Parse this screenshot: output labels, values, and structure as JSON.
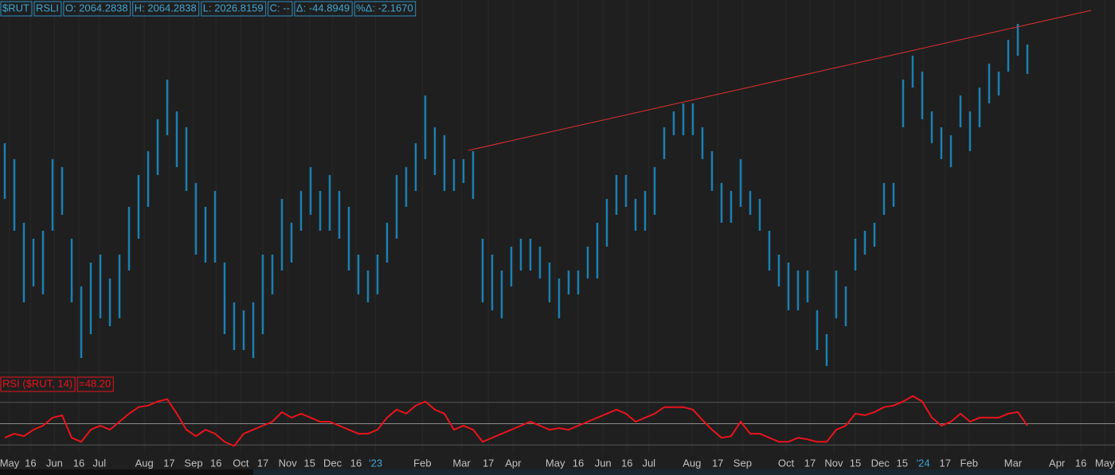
{
  "chart_data": [
    {
      "type": "range-bar",
      "color": "#1b80b0",
      "header": [
        "$RUT",
        "RSLI",
        "O: 2064.2838",
        "H: 2064.2838",
        "L: 2026.8159",
        "C: --",
        "Δ: -44.8949",
        "%Δ: -2.1670"
      ],
      "high": [
        1940,
        1920,
        1840,
        1820,
        1830,
        1920,
        1910,
        1820,
        1760,
        1790,
        1800,
        1770,
        1800,
        1860,
        1900,
        1930,
        1970,
        2020,
        1980,
        1960,
        1890,
        1860,
        1880,
        1790,
        1740,
        1730,
        1740,
        1800,
        1800,
        1870,
        1840,
        1880,
        1910,
        1880,
        1900,
        1880,
        1860,
        1800,
        1780,
        1800,
        1840,
        1900,
        1910,
        1940,
        2000,
        1960,
        1950,
        1920,
        1920,
        1930,
        1820,
        1800,
        1780,
        1810,
        1820,
        1820,
        1810,
        1790,
        1770,
        1780,
        1780,
        1810,
        1840,
        1870,
        1900,
        1900,
        1870,
        1880,
        1910,
        1960,
        1980,
        1990,
        1990,
        1960,
        1930,
        1890,
        1880,
        1920,
        1880,
        1870,
        1830,
        1800,
        1790,
        1780,
        1780,
        1730,
        1700,
        1780,
        1760,
        1820,
        1830,
        1840,
        1890,
        1890,
        2020,
        2050,
        2030,
        1980,
        1960,
        1950,
        2000,
        1980,
        2010,
        2040,
        2030,
        2070,
        2090,
        2064
      ],
      "low": [
        1870,
        1830,
        1740,
        1760,
        1750,
        1830,
        1850,
        1740,
        1670,
        1700,
        1720,
        1710,
        1720,
        1780,
        1820,
        1860,
        1900,
        1950,
        1910,
        1880,
        1800,
        1790,
        1790,
        1700,
        1680,
        1680,
        1670,
        1700,
        1750,
        1780,
        1790,
        1830,
        1850,
        1830,
        1830,
        1820,
        1780,
        1750,
        1740,
        1750,
        1790,
        1820,
        1860,
        1880,
        1920,
        1900,
        1880,
        1880,
        1890,
        1870,
        1740,
        1730,
        1720,
        1760,
        1780,
        1780,
        1770,
        1740,
        1720,
        1750,
        1750,
        1770,
        1770,
        1810,
        1850,
        1860,
        1830,
        1830,
        1850,
        1920,
        1950,
        1950,
        1950,
        1920,
        1880,
        1840,
        1840,
        1860,
        1850,
        1830,
        1780,
        1760,
        1730,
        1730,
        1740,
        1680,
        1660,
        1720,
        1710,
        1780,
        1800,
        1810,
        1850,
        1860,
        1960,
        2010,
        1970,
        1940,
        1920,
        1910,
        1960,
        1930,
        1960,
        1990,
        2000,
        2030,
        2050,
        2027
      ],
      "ylim": [
        1655,
        2120
      ],
      "xlim": [
        -0.5,
        116.17
      ],
      "xticks": [
        {
          "value": 0.5,
          "label": "May"
        },
        {
          "value": 2.7,
          "label": "16"
        },
        {
          "value": 5.2,
          "label": "Jun"
        },
        {
          "value": 7.75,
          "label": "16"
        },
        {
          "value": 9.9,
          "label": "Jul"
        },
        {
          "value": 14.6,
          "label": "Aug"
        },
        {
          "value": 17.2,
          "label": "17"
        },
        {
          "value": 19.75,
          "label": "Sep"
        },
        {
          "value": 22.1,
          "label": "16"
        },
        {
          "value": 24.7,
          "label": "Oct"
        },
        {
          "value": 27,
          "label": "17"
        },
        {
          "value": 29.6,
          "label": "Nov"
        },
        {
          "value": 31.9,
          "label": "15"
        },
        {
          "value": 34.3,
          "label": "Dec"
        },
        {
          "value": 36.75,
          "label": "16"
        },
        {
          "value": 38.8,
          "label": "'23"
        },
        {
          "value": 43.7,
          "label": "Feb"
        },
        {
          "value": 47.8,
          "label": "Mar"
        },
        {
          "value": 50.6,
          "label": "17"
        },
        {
          "value": 53.2,
          "label": "Apr"
        },
        {
          "value": 57.6,
          "label": "May"
        },
        {
          "value": 60,
          "label": "16"
        },
        {
          "value": 62.6,
          "label": "Jun"
        },
        {
          "value": 65.1,
          "label": "16"
        },
        {
          "value": 67.4,
          "label": "Jul"
        },
        {
          "value": 71.9,
          "label": "Aug"
        },
        {
          "value": 74.6,
          "label": "17"
        },
        {
          "value": 77.2,
          "label": "Sep"
        },
        {
          "value": 81.75,
          "label": "Oct"
        },
        {
          "value": 84.25,
          "label": "17"
        },
        {
          "value": 86.75,
          "label": "Nov"
        },
        {
          "value": 89,
          "label": "15"
        },
        {
          "value": 91.6,
          "label": "Dec"
        },
        {
          "value": 93.9,
          "label": "15"
        },
        {
          "value": 96.1,
          "label": "'24"
        },
        {
          "value": 98.4,
          "label": "17"
        },
        {
          "value": 100.9,
          "label": "Feb"
        },
        {
          "value": 105.5,
          "label": "Mar"
        },
        {
          "value": 110.1,
          "label": "Apr"
        },
        {
          "value": 112.6,
          "label": "16"
        },
        {
          "value": 115.1,
          "label": "May"
        }
      ]
    },
    {
      "type": "line",
      "name": "RSI ($RUT, 14)",
      "last_label": "=48.20",
      "color": "#e8141c",
      "values": [
        36.8,
        40.6,
        38.3,
        44.3,
        48.1,
        55.7,
        57.9,
        36.8,
        33.0,
        44.3,
        48.1,
        44.3,
        51.9,
        59.4,
        65.5,
        67.0,
        70.8,
        73.0,
        59.4,
        44.3,
        38.3,
        44.3,
        40.6,
        33.0,
        29.2,
        40.6,
        44.3,
        48.1,
        51.9,
        60.9,
        55.7,
        59.4,
        55.7,
        51.9,
        51.9,
        48.1,
        44.3,
        40.6,
        40.6,
        44.3,
        55.7,
        63.2,
        59.4,
        67.0,
        70.8,
        63.2,
        59.4,
        44.3,
        48.1,
        44.3,
        33.0,
        36.8,
        40.6,
        44.3,
        48.1,
        51.9,
        48.1,
        44.3,
        45.8,
        44.3,
        48.1,
        51.9,
        55.7,
        59.4,
        63.2,
        59.4,
        51.9,
        55.7,
        59.4,
        65.5,
        65.5,
        65.5,
        63.2,
        53.4,
        44.3,
        36.8,
        38.3,
        51.9,
        40.6,
        40.6,
        36.8,
        33.0,
        33.0,
        36.8,
        35.3,
        33.0,
        33.0,
        44.3,
        48.1,
        59.4,
        57.9,
        60.9,
        65.5,
        67.0,
        70.8,
        76.0,
        70.8,
        55.7,
        48.1,
        51.9,
        59.4,
        51.9,
        55.7,
        55.7,
        55.7,
        59.4,
        60.9,
        48.2
      ],
      "ylim": [
        22,
        78
      ],
      "levels": [
        30,
        50,
        70
      ]
    }
  ]
}
